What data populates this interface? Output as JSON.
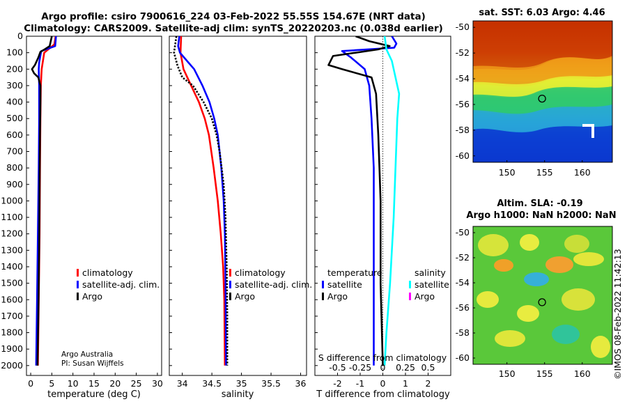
{
  "title": {
    "line1": "Argo profile: csiro 7900616_224 03-Feb-2022 55.55S 154.67E (NRT data)",
    "line2": "Climatology: CARS2009. Satellite-adj clim: synTS_20220203.nc (0.038d earlier)"
  },
  "colors": {
    "climatology": "#ff0000",
    "satellite": "#0000ff",
    "argo": "#000000",
    "sal_satellite": "#00ffff",
    "sal_argo": "#ff00ff",
    "zero_line": "#000000"
  },
  "depth_axis": {
    "ticks": [
      0,
      100,
      200,
      300,
      400,
      500,
      600,
      700,
      800,
      900,
      1000,
      1100,
      1200,
      1300,
      1400,
      1500,
      1600,
      1700,
      1800,
      1900,
      2000
    ],
    "range": [
      0,
      2060
    ]
  },
  "credits": {
    "line1": "Argo Australia",
    "line2": "PI: Susan Wijffels"
  },
  "watermark": "©IMOS 08-Feb-2022 11:42:13",
  "chart_data": [
    {
      "type": "line",
      "id": "temperature",
      "xlabel": "temperature (deg C)",
      "xlim": [
        -1,
        31
      ],
      "xticks": [
        0,
        5,
        10,
        15,
        20,
        25,
        30
      ],
      "legend": [
        "climatology",
        "satellite-adj. clim.",
        "Argo"
      ],
      "series": [
        {
          "name": "climatology",
          "color": "red",
          "points": [
            [
              5.9,
              0
            ],
            [
              5.6,
              50
            ],
            [
              3.2,
              100
            ],
            [
              2.6,
              200
            ],
            [
              2.4,
              300
            ],
            [
              2.3,
              500
            ],
            [
              2.2,
              800
            ],
            [
              2.1,
              1200
            ],
            [
              1.9,
              1600
            ],
            [
              1.7,
              2000
            ]
          ]
        },
        {
          "name": "satellite-adj. clim.",
          "color": "blue",
          "points": [
            [
              6.0,
              0
            ],
            [
              5.8,
              60
            ],
            [
              2.5,
              90
            ],
            [
              2.0,
              160
            ],
            [
              1.9,
              200
            ],
            [
              2.0,
              300
            ],
            [
              2.0,
              500
            ],
            [
              1.9,
              800
            ],
            [
              1.7,
              1200
            ],
            [
              1.5,
              1600
            ],
            [
              1.3,
              2000
            ]
          ]
        },
        {
          "name": "Argo",
          "color": "black",
          "points": [
            [
              5.0,
              0
            ],
            [
              4.5,
              60
            ],
            [
              3.3,
              80
            ],
            [
              2.3,
              95
            ],
            [
              1.8,
              130
            ],
            [
              1.0,
              175
            ],
            [
              0.3,
              200
            ],
            [
              0.8,
              225
            ],
            [
              1.8,
              250
            ],
            [
              2.3,
              300
            ],
            [
              2.3,
              400
            ],
            [
              2.2,
              600
            ],
            [
              2.1,
              900
            ],
            [
              2.0,
              1300
            ],
            [
              1.8,
              1700
            ],
            [
              1.6,
              2000
            ]
          ]
        }
      ]
    },
    {
      "type": "line",
      "id": "salinity",
      "xlabel": "salinity",
      "xlim": [
        33.78,
        36.1
      ],
      "xticks": [
        34,
        34.5,
        35,
        35.5,
        36
      ],
      "xtick_labels": [
        "34",
        "34.5",
        "35",
        "35.5",
        "36"
      ],
      "legend": [
        "climatology",
        "satellite-adj. clim.",
        "Argo"
      ],
      "series": [
        {
          "name": "climatology",
          "color": "red",
          "points": [
            [
              33.98,
              0
            ],
            [
              33.97,
              100
            ],
            [
              34.02,
              200
            ],
            [
              34.15,
              300
            ],
            [
              34.28,
              400
            ],
            [
              34.38,
              500
            ],
            [
              34.45,
              600
            ],
            [
              34.53,
              800
            ],
            [
              34.6,
              1000
            ],
            [
              34.65,
              1200
            ],
            [
              34.69,
              1400
            ],
            [
              34.71,
              1600
            ],
            [
              34.72,
              2000
            ]
          ]
        },
        {
          "name": "satellite-adj. clim.",
          "color": "blue",
          "points": [
            [
              33.95,
              0
            ],
            [
              33.93,
              60
            ],
            [
              33.96,
              100
            ],
            [
              34.08,
              150
            ],
            [
              34.2,
              200
            ],
            [
              34.34,
              300
            ],
            [
              34.46,
              400
            ],
            [
              34.54,
              500
            ],
            [
              34.6,
              600
            ],
            [
              34.66,
              800
            ],
            [
              34.7,
              1000
            ],
            [
              34.72,
              1200
            ],
            [
              34.73,
              1500
            ],
            [
              34.74,
              2000
            ]
          ]
        },
        {
          "name": "Argo",
          "color": "black",
          "points": [
            [
              33.9,
              0
            ],
            [
              33.86,
              100
            ],
            [
              33.92,
              180
            ],
            [
              34.0,
              250
            ],
            [
              34.18,
              300
            ],
            [
              34.36,
              400
            ],
            [
              34.5,
              500
            ],
            [
              34.58,
              600
            ],
            [
              34.63,
              700
            ],
            [
              34.7,
              900
            ],
            [
              34.73,
              1100
            ],
            [
              34.75,
              1400
            ],
            [
              34.76,
              1700
            ],
            [
              34.76,
              2000
            ]
          ]
        }
      ]
    },
    {
      "type": "line",
      "id": "difference",
      "xlabel": "T difference from climatology",
      "xlabel_top": "S difference from climatology",
      "xlim": [
        -3,
        3
      ],
      "xticks": [
        -2,
        -1,
        0,
        1,
        2
      ],
      "sticks": [
        -0.5,
        -0.25,
        0,
        0.25,
        0.5
      ],
      "stick_labels": [
        "-0.5",
        "-0.25",
        "0",
        "0.25",
        "0.5"
      ],
      "legend_temperature": {
        "title": "temperature",
        "items": [
          "satellite",
          "Argo"
        ]
      },
      "legend_salinity": {
        "title": "salinity",
        "items": [
          "satellite",
          "Argo"
        ]
      },
      "series": [
        {
          "name": "T satellite",
          "color": "blue",
          "points": [
            [
              0.4,
              0
            ],
            [
              0.6,
              45
            ],
            [
              0.5,
              70
            ],
            [
              -1.8,
              90
            ],
            [
              -1.4,
              130
            ],
            [
              -0.8,
              200
            ],
            [
              -0.6,
              300
            ],
            [
              -0.5,
              500
            ],
            [
              -0.4,
              800
            ],
            [
              -0.4,
              1200
            ],
            [
              -0.4,
              2000
            ]
          ]
        },
        {
          "name": "T Argo",
          "color": "black",
          "points": [
            [
              -1.2,
              0
            ],
            [
              -0.6,
              30
            ],
            [
              0.3,
              60
            ],
            [
              -0.2,
              80
            ],
            [
              -2.2,
              120
            ],
            [
              -2.4,
              175
            ],
            [
              -1.8,
              200
            ],
            [
              -0.5,
              250
            ],
            [
              -0.3,
              350
            ],
            [
              -0.2,
              600
            ],
            [
              -0.1,
              1000
            ],
            [
              -0.1,
              1500
            ],
            [
              0,
              2000
            ]
          ]
        },
        {
          "name": "S satellite",
          "color": "cyan",
          "points": [
            [
              0.02,
              0
            ],
            [
              0.04,
              80
            ],
            [
              0.1,
              150
            ],
            [
              0.14,
              250
            ],
            [
              0.18,
              350
            ],
            [
              0.16,
              500
            ],
            [
              0.14,
              800
            ],
            [
              0.12,
              1100
            ],
            [
              0.08,
              1500
            ],
            [
              0.04,
              1800
            ],
            [
              0.02,
              2000
            ]
          ]
        }
      ]
    },
    {
      "type": "heatmap",
      "id": "sst_map",
      "title": "sat. SST: 6.03 Argo: 4.46",
      "xticks": [
        150,
        155,
        160
      ],
      "yticks": [
        -50,
        -52,
        -54,
        -56,
        -58,
        -60
      ],
      "xlim": [
        145.5,
        164
      ],
      "ylim": [
        -60.5,
        -49.5
      ],
      "marker": {
        "lon": 154.67,
        "lat": -55.55
      }
    },
    {
      "type": "heatmap",
      "id": "sla_map",
      "title_line1": "Altim. SLA: -0.19",
      "title_line2": "Argo h1000: NaN h2000: NaN",
      "xticks": [
        150,
        155,
        160
      ],
      "yticks": [
        -50,
        -52,
        -54,
        -56,
        -58,
        -60
      ],
      "xlim": [
        145.5,
        164
      ],
      "ylim": [
        -60.5,
        -49.5
      ],
      "marker": {
        "lon": 154.67,
        "lat": -55.55
      }
    }
  ]
}
